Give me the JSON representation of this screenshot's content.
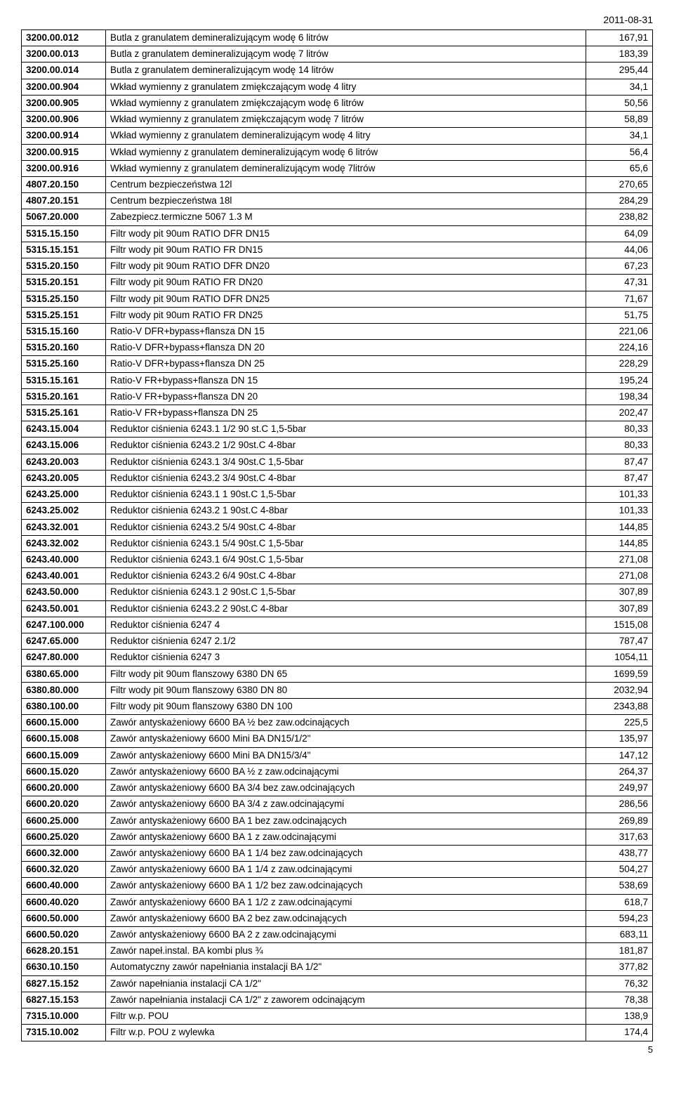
{
  "date": "2011-08-31",
  "page_number": "5",
  "columns": {
    "code_width": 110,
    "value_width": 90
  },
  "colors": {
    "text": "#000000",
    "border": "#000000",
    "background": "#ffffff"
  },
  "rows": [
    {
      "code": "3200.00.012",
      "desc": "Butla z granulatem demineralizującym wodę 6 litrów",
      "val": "167,91"
    },
    {
      "code": "3200.00.013",
      "desc": "Butla z granulatem demineralizującym wodę 7 litrów",
      "val": "183,39"
    },
    {
      "code": "3200.00.014",
      "desc": "Butla z granulatem demineralizującym wodę 14 litrów",
      "val": "295,44"
    },
    {
      "code": "3200.00.904",
      "desc": "Wkład wymienny z granulatem zmiękczającym wodę 4 litry",
      "val": "34,1"
    },
    {
      "code": "3200.00.905",
      "desc": "Wkład wymienny z granulatem zmiękczającym wodę 6 litrów",
      "val": "50,56"
    },
    {
      "code": "3200.00.906",
      "desc": "Wkład wymienny z granulatem zmiękczającym wodę 7 litrów",
      "val": "58,89"
    },
    {
      "code": "3200.00.914",
      "desc": "Wkład wymienny z granulatem demineralizującym wodę 4 litry",
      "val": "34,1"
    },
    {
      "code": "3200.00.915",
      "desc": "Wkład wymienny z granulatem demineralizującym wodę 6 litrów",
      "val": "56,4"
    },
    {
      "code": "3200.00.916",
      "desc": "Wkład wymienny z granulatem demineralizującym wodę 7litrów",
      "val": "65,6"
    },
    {
      "code": "4807.20.150",
      "desc": "Centrum bezpieczeństwa  12l",
      "val": "270,65"
    },
    {
      "code": "4807.20.151",
      "desc": "Centrum bezpieczeństwa  18l",
      "val": "284,29"
    },
    {
      "code": "5067.20.000",
      "desc": "Zabezpiecz.termiczne 5067 1.3 M",
      "val": "238,82"
    },
    {
      "code": "5315.15.150",
      "desc": "Filtr wody pit 90um RATIO DFR DN15",
      "val": "64,09"
    },
    {
      "code": "5315.15.151",
      "desc": "Filtr wody pit 90um RATIO FR DN15",
      "val": "44,06"
    },
    {
      "code": "5315.20.150",
      "desc": "Filtr wody pit 90um RATIO DFR DN20",
      "val": "67,23"
    },
    {
      "code": "5315.20.151",
      "desc": "Filtr wody pit 90um RATIO FR DN20",
      "val": "47,31"
    },
    {
      "code": "5315.25.150",
      "desc": "Filtr wody pit 90um RATIO DFR DN25",
      "val": "71,67"
    },
    {
      "code": "5315.25.151",
      "desc": "Filtr wody pit 90um RATIO FR DN25",
      "val": "51,75"
    },
    {
      "code": "5315.15.160",
      "desc": "Ratio-V DFR+bypass+flansza DN 15",
      "val": "221,06"
    },
    {
      "code": "5315.20.160",
      "desc": "Ratio-V DFR+bypass+flansza DN 20",
      "val": "224,16"
    },
    {
      "code": "5315.25.160",
      "desc": "Ratio-V DFR+bypass+flansza DN 25",
      "val": "228,29"
    },
    {
      "code": "5315.15.161",
      "desc": "Ratio-V FR+bypass+flansza DN 15",
      "val": "195,24"
    },
    {
      "code": "5315.20.161",
      "desc": "Ratio-V FR+bypass+flansza DN 20",
      "val": "198,34"
    },
    {
      "code": "5315.25.161",
      "desc": "Ratio-V FR+bypass+flansza DN 25",
      "val": "202,47"
    },
    {
      "code": "6243.15.004",
      "desc": "Reduktor ciśnienia 6243.1 1/2   90 st.C 1,5-5bar",
      "val": "80,33"
    },
    {
      "code": "6243.15.006",
      "desc": "Reduktor ciśnienia 6243.2 1/2  90st.C 4-8bar",
      "val": "80,33"
    },
    {
      "code": "6243.20.003",
      "desc": "Reduktor ciśnienia 6243.1 3/4  90st.C 1,5-5bar",
      "val": "87,47"
    },
    {
      "code": "6243.20.005",
      "desc": "Reduktor ciśnienia 6243.2 3/4  90st.C 4-8bar",
      "val": "87,47"
    },
    {
      "code": "6243.25.000",
      "desc": "Reduktor ciśnienia 6243.1   1  90st.C 1,5-5bar",
      "val": "101,33"
    },
    {
      "code": "6243.25.002",
      "desc": "Reduktor ciśnienia 6243.2   1  90st.C 4-8bar",
      "val": "101,33"
    },
    {
      "code": "6243.32.001",
      "desc": "Reduktor ciśnienia 6243.2 5/4  90st.C 4-8bar",
      "val": "144,85"
    },
    {
      "code": "6243.32.002",
      "desc": "Reduktor ciśnienia 6243.1 5/4 90st.C 1,5-5bar",
      "val": "144,85"
    },
    {
      "code": "6243.40.000",
      "desc": "Reduktor ciśnienia 6243.1 6/4 90st.C 1,5-5bar",
      "val": "271,08"
    },
    {
      "code": "6243.40.001",
      "desc": "Reduktor ciśnienia 6243.2 6/4  90st.C 4-8bar",
      "val": "271,08"
    },
    {
      "code": "6243.50.000",
      "desc": "Reduktor ciśnienia 6243.1   2   90st.C 1,5-5bar",
      "val": "307,89"
    },
    {
      "code": "6243.50.001",
      "desc": "Reduktor ciśnienia 6243.2   2  90st.C 4-8bar",
      "val": "307,89"
    },
    {
      "code": "6247.100.000",
      "desc": "Reduktor ciśnienia 6247     4",
      "val": "1515,08"
    },
    {
      "code": "6247.65.000",
      "desc": "Reduktor ciśnienia 6247 2.1/2",
      "val": "787,47"
    },
    {
      "code": "6247.80.000",
      "desc": "Reduktor ciśnienia 6247     3",
      "val": "1054,11"
    },
    {
      "code": "6380.65.000",
      "desc": "Filtr wody pit 90um flanszowy 6380 DN 65",
      "val": "1699,59"
    },
    {
      "code": "6380.80.000",
      "desc": "Filtr wody pit 90um flanszowy 6380 DN 80",
      "val": "2032,94"
    },
    {
      "code": "6380.100.00",
      "desc": "Filtr wody pit 90um flanszowy 6380 DN 100",
      "val": "2343,88"
    },
    {
      "code": "6600.15.000",
      "desc": "Zawór antyskażeniowy 6600 BA ½  bez zaw.odcinających",
      "val": "225,5"
    },
    {
      "code": "6600.15.008",
      "desc": "Zawór antyskażeniowy 6600 Mini BA DN15/1/2\"",
      "val": "135,97"
    },
    {
      "code": "6600.15.009",
      "desc": "Zawór antyskażeniowy 6600 Mini BA DN15/3/4\"",
      "val": "147,12"
    },
    {
      "code": "6600.15.020",
      "desc": "Zawór antyskażeniowy 6600 BA ½ z zaw.odcinającymi",
      "val": "264,37"
    },
    {
      "code": "6600.20.000",
      "desc": "Zawór antyskażeniowy 6600 BA 3/4  bez zaw.odcinających",
      "val": "249,97"
    },
    {
      "code": "6600.20.020",
      "desc": "Zawór antyskażeniowy 6600 BA 3/4 z zaw.odcinającymi",
      "val": "286,56"
    },
    {
      "code": "6600.25.000",
      "desc": "Zawór antyskażeniowy 6600 BA 1  bez zaw.odcinających",
      "val": "269,89"
    },
    {
      "code": "6600.25.020",
      "desc": "Zawór antyskażeniowy 6600 BA 1 z zaw.odcinającymi",
      "val": "317,63"
    },
    {
      "code": "6600.32.000",
      "desc": "Zawór antyskażeniowy 6600 BA 1 1/4  bez zaw.odcinających",
      "val": "438,77"
    },
    {
      "code": "6600.32.020",
      "desc": "Zawór antyskażeniowy 6600 BA 1 1/4 z zaw.odcinającymi",
      "val": "504,27"
    },
    {
      "code": "6600.40.000",
      "desc": "Zawór antyskażeniowy 6600 BA 1 1/2  bez zaw.odcinających",
      "val": "538,69"
    },
    {
      "code": "6600.40.020",
      "desc": "Zawór antyskażeniowy 6600 BA 1 1/2 z zaw.odcinającymi",
      "val": "618,7"
    },
    {
      "code": "6600.50.000",
      "desc": "Zawór antyskażeniowy 6600 BA 2  bez zaw.odcinających",
      "val": "594,23"
    },
    {
      "code": "6600.50.020",
      "desc": "Zawór antyskażeniowy 6600 BA 2 z zaw.odcinającymi",
      "val": "683,11"
    },
    {
      "code": "6628.20.151",
      "desc": "Zawór napeł.instal. BA kombi plus ¾",
      "val": "181,87"
    },
    {
      "code": "6630.10.150",
      "desc": "Automatyczny zawór napełniania instalacji BA 1/2\"",
      "val": "377,82"
    },
    {
      "code": "6827.15.152",
      "desc": "Zawór napełniania instalacji CA 1/2\"",
      "val": "76,32"
    },
    {
      "code": "6827.15.153",
      "desc": "Zawór napełniania instalacji CA 1/2\" z zaworem odcinającym",
      "val": "78,38"
    },
    {
      "code": "7315.10.000",
      "desc": "Filtr w.p. POU",
      "val": "138,9"
    },
    {
      "code": "7315.10.002",
      "desc": "Filtr w.p. POU z wylewka",
      "val": "174,4"
    }
  ]
}
